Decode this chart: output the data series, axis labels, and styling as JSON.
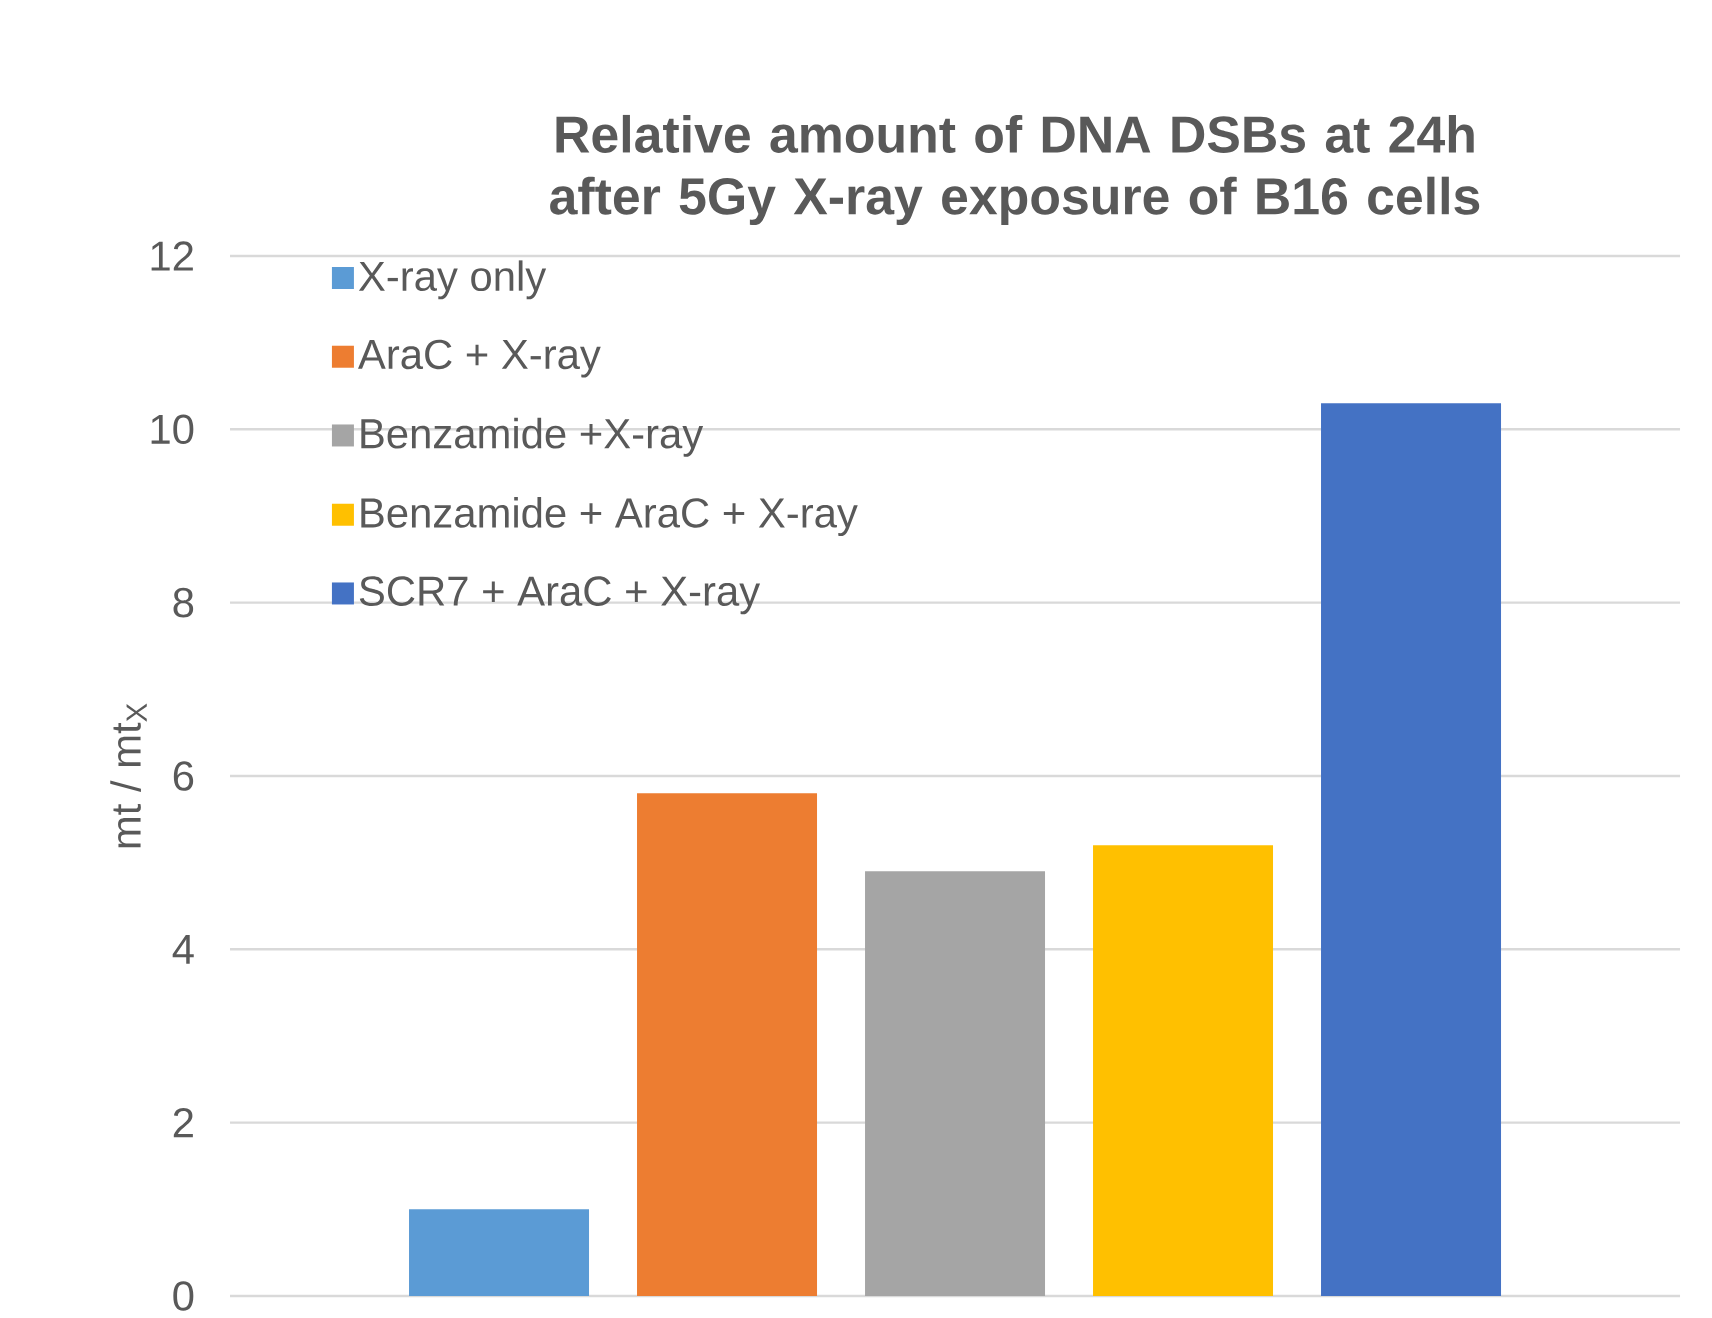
{
  "chart_data": {
    "type": "bar",
    "title": "Relative amount of DNA DSBs at 24h after 5Gy X-ray exposure of B16 cells",
    "ylabel": "mt / mt$_{X}$",
    "categories": [
      null
    ],
    "series": [
      {
        "name": "X-ray only",
        "color": "#5b9bd5",
        "values": [
          1.0
        ]
      },
      {
        "name": "AraC + X-ray",
        "color": "#ed7d31",
        "values": [
          5.8
        ]
      },
      {
        "name": "Benzamide +X-ray",
        "color": "#a5a5a5",
        "values": [
          4.9
        ]
      },
      {
        "name": "Benzamide + AraC + X-ray",
        "color": "#ffc000",
        "values": [
          5.2
        ]
      },
      {
        "name": "SCR7 + AraC + X-ray",
        "color": "#4472c4",
        "values": [
          10.3
        ]
      }
    ],
    "ylim": [
      0,
      12
    ],
    "yticks": [
      0,
      2,
      4,
      6,
      8,
      10,
      12
    ],
    "grid": "y",
    "legend": "top left",
    "tick_labels": "y"
  }
}
